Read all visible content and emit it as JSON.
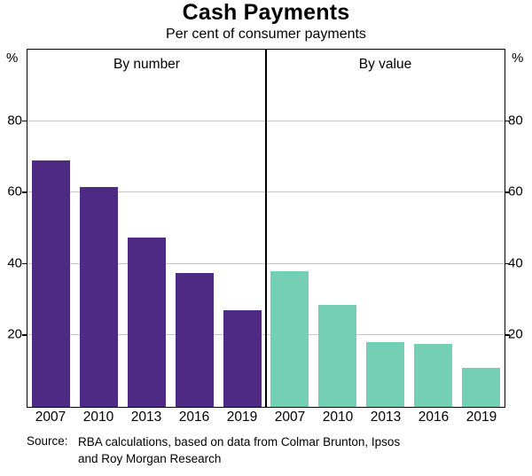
{
  "title": "Cash Payments",
  "subtitle": "Per cent of consumer payments",
  "axis": {
    "unit": "%"
  },
  "chart_data": {
    "type": "bar",
    "title": "Cash Payments",
    "subtitle": "Per cent of consumer payments",
    "layout": "two-panel",
    "categories": [
      "2007",
      "2010",
      "2013",
      "2016",
      "2019"
    ],
    "series": [
      {
        "name": "By number",
        "values": [
          69,
          61.5,
          47.5,
          37.5,
          27
        ],
        "color": "#4e2a84"
      },
      {
        "name": "By value",
        "values": [
          38,
          28.5,
          18,
          17.5,
          11
        ],
        "color": "#75cfb4"
      }
    ],
    "ylabel": "%",
    "ylim": [
      0,
      100
    ],
    "yticks": [
      20,
      40,
      60,
      80
    ],
    "grid": true,
    "legend": "panel labels inside plot"
  },
  "source": {
    "label": "Source:",
    "lines": [
      "RBA calculations, based on data from Colmar Brunton, Ipsos",
      "and Roy Morgan Research"
    ]
  }
}
